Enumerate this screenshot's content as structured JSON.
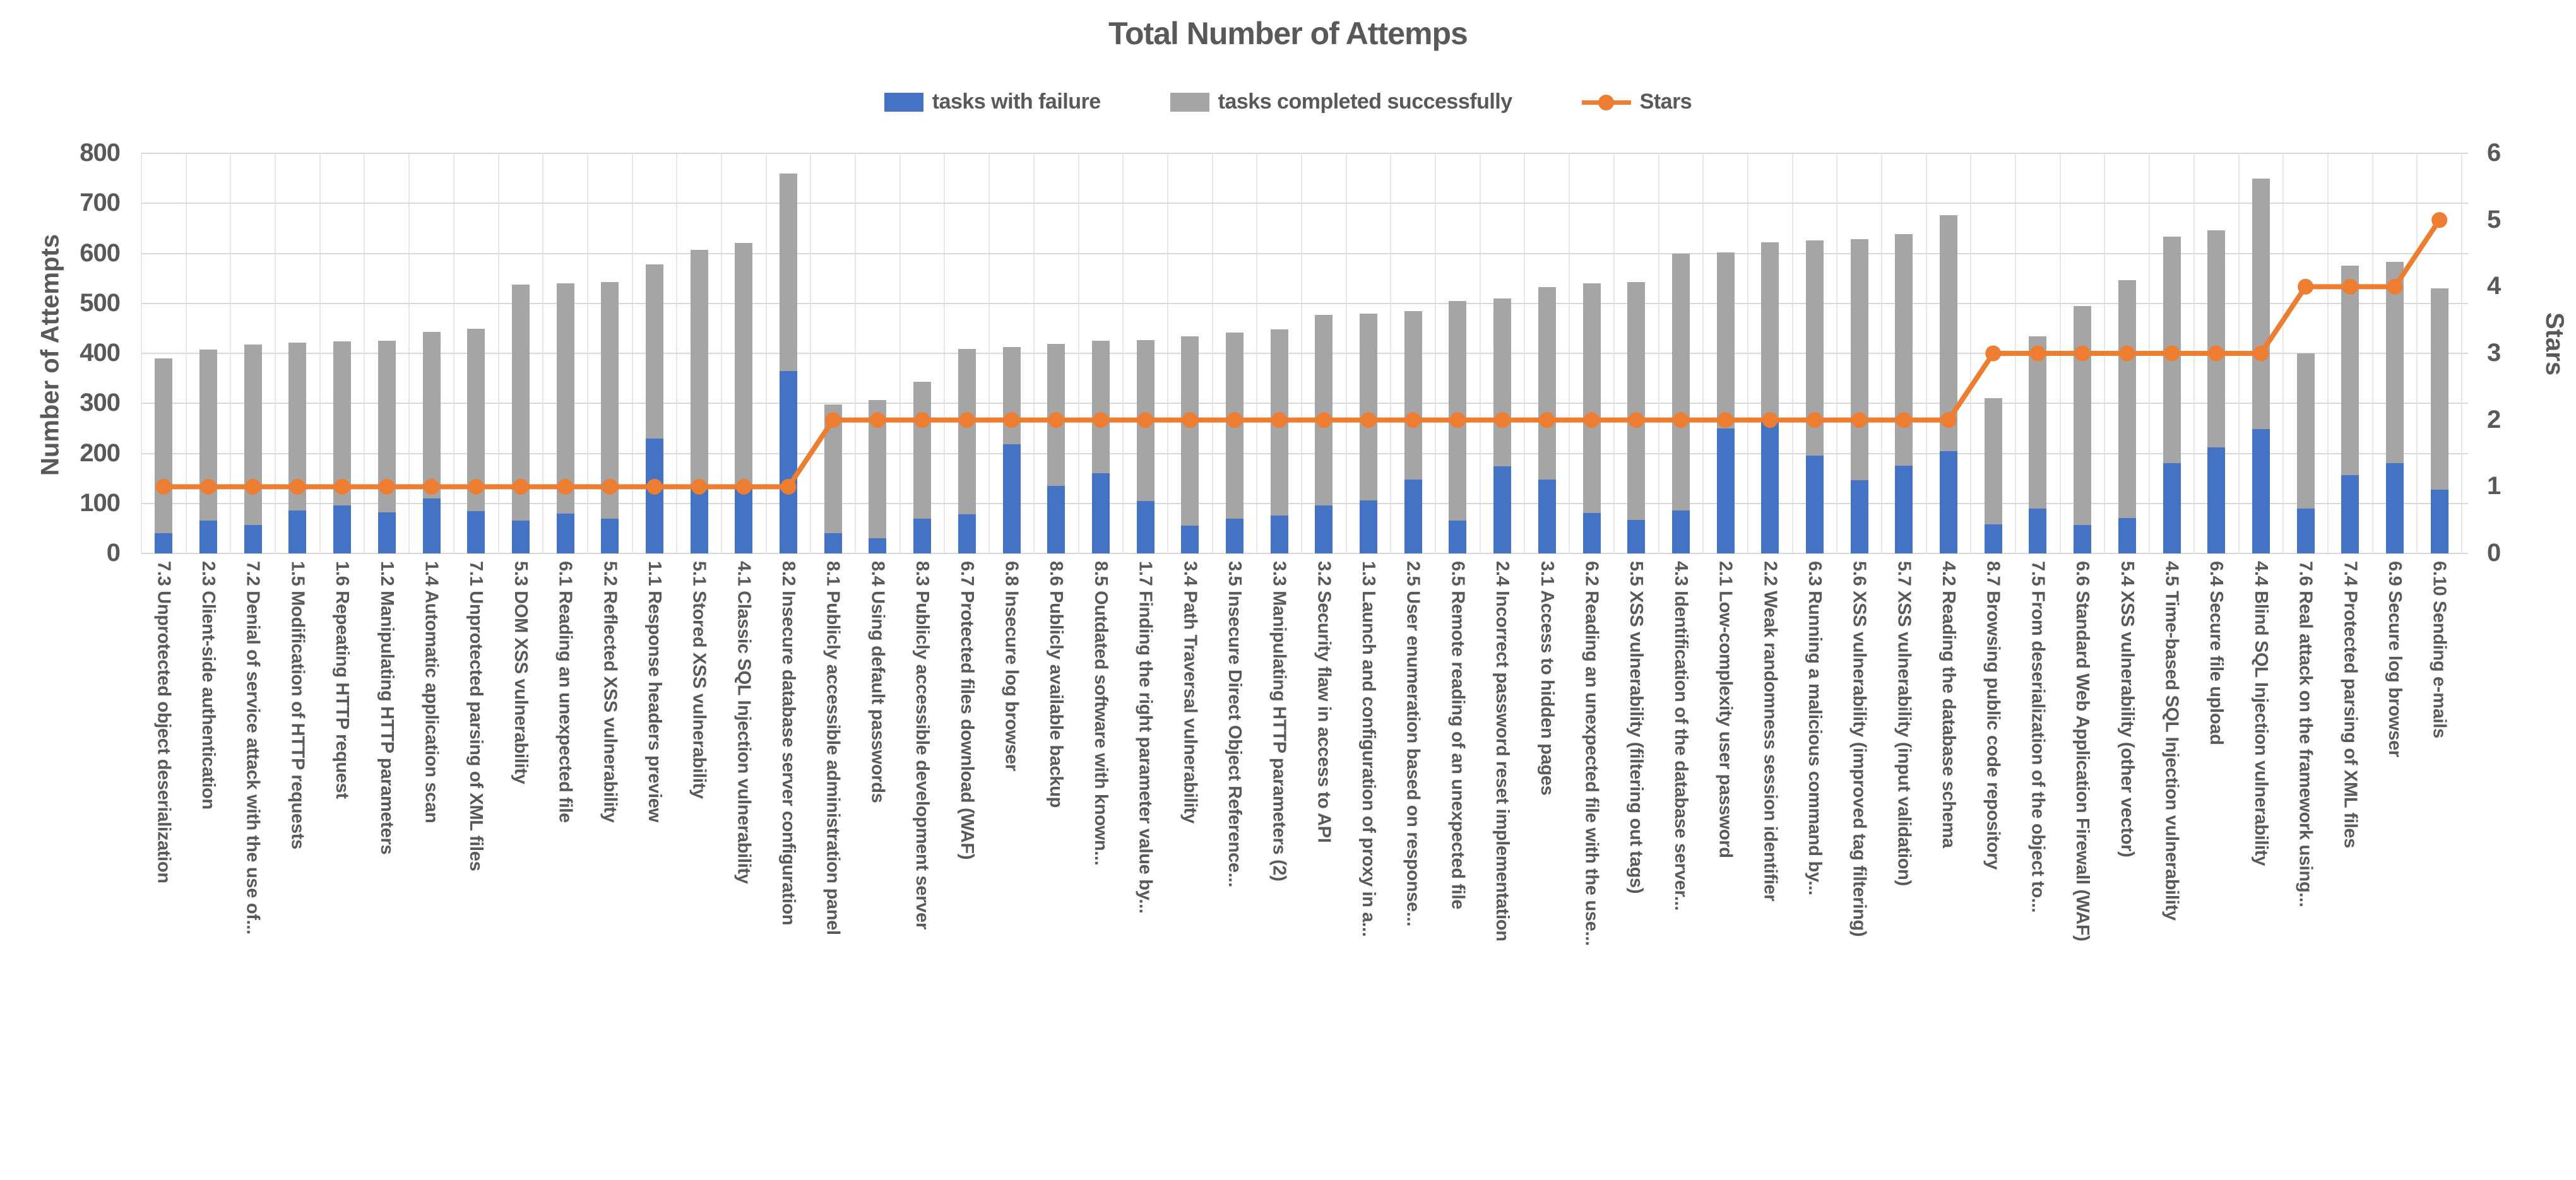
{
  "chart_data": {
    "type": "bar",
    "combo": "stacked-bars-plus-line",
    "title": "Total Number of Attemps",
    "legend": [
      "tasks with failure",
      "tasks completed successfully",
      "Stars"
    ],
    "legend_position": "top",
    "grid": "on",
    "y_axis": {
      "title": "Number of Attempts",
      "min": 0,
      "max": 800,
      "step": 100
    },
    "y2_axis": {
      "title": "Stars",
      "min": 0,
      "max": 6,
      "step": 1
    },
    "colors": {
      "failure": "#4472C4",
      "success": "#A5A5A5",
      "stars": "#ED7D31",
      "grid": "#D9D9D9",
      "text": "#595959"
    },
    "categories": [
      "7.3 Unprotected object deserialization",
      "2.3 Client-side authentication",
      "7.2 Denial of service attack with the use of...",
      "1.5 Modification of HTTP requests",
      "1.6 Repeating HTTP request",
      "1.2 Manipulating HTTP parameters",
      "1.4 Automatic application scan",
      "7.1 Unprotected parsing of XML files",
      "5.3 DOM XSS vulnerability",
      "6.1 Reading an unexpected file",
      "5.2 Reflected XSS vulnerability",
      "1.1 Response headers preview",
      "5.1 Stored XSS vulnerability",
      "4.1 Classic SQL Injection vulnerability",
      "8.2 Insecure database server configuration",
      "8.1 Publicly accessible administration panel",
      "8.4 Using default passwords",
      "8.3 Publicly accessible development server",
      "6.7 Protected files download (WAF)",
      "6.8 Insecure log browser",
      "8.6 Publicly available backup",
      "8.5 Outdated software with known...",
      "1.7 Finding the right parameter value by...",
      "3.4 Path Traversal vulnerability",
      "3.5 Insecure Direct Object Reference...",
      "3.3 Manipulating HTTP parameters (2)",
      "3.2 Security flaw in access to API",
      "1.3 Launch and configuration of proxy in a...",
      "2.5 User enumeration based on response...",
      "6.5 Remote reading of an unexpected file",
      "2.4 Incorrect password reset implementation",
      "3.1 Access to hidden pages",
      "6.2 Reading an unexpected file with the use...",
      "5.5 XSS vulnerability (filtering out tags)",
      "4.3 Identification of the database server...",
      "2.1 Low-complexity user password",
      "2.2 Weak randomness session identifier",
      "6.3 Running a malicious command by...",
      "5.6 XSS vulnerability (improved tag filtering)",
      "5.7 XSS vulnerability (input validation)",
      "4.2 Reading the database schema",
      "8.7 Browsing public code repository",
      "7.5 From deserialization of the object to...",
      "6.6 Standard Web Application Firewall (WAF)",
      "5.4 XSS vulnerability (other vector)",
      "4.5 Time-based SQL Injection vulnerability",
      "6.4 Secure file upload",
      "4.4 Blind SQL Injection vulnerability",
      "7.6 Real attack on the framework using...",
      "7.4 Protected parsing of XML files",
      "6.9 Secure log browser",
      "6.10 Sending e-mails"
    ],
    "series": [
      {
        "name": "tasks with failure",
        "type": "bar",
        "stack": 1,
        "color": "#4472C4",
        "values": [
          40,
          65,
          57,
          86,
          96,
          82,
          110,
          85,
          65,
          80,
          70,
          230,
          135,
          135,
          365,
          40,
          30,
          70,
          78,
          218,
          135,
          160,
          105,
          56,
          70,
          76,
          96,
          106,
          148,
          65,
          174,
          148,
          81,
          67,
          86,
          250,
          262,
          195,
          146,
          175,
          205,
          58,
          90,
          57,
          71,
          180,
          212,
          248,
          89,
          157,
          180,
          127
        ]
      },
      {
        "name": "tasks completed successfully",
        "type": "bar",
        "stack": 1,
        "color": "#A5A5A5",
        "values": [
          350,
          343,
          361,
          335,
          328,
          343,
          333,
          364,
          472,
          460,
          472,
          348,
          472,
          486,
          395,
          258,
          276,
          273,
          331,
          194,
          284,
          265,
          322,
          378,
          372,
          372,
          381,
          374,
          336,
          440,
          336,
          384,
          459,
          475,
          514,
          352,
          360,
          431,
          482,
          463,
          471,
          252,
          344,
          438,
          475,
          453,
          434,
          502,
          311,
          418,
          403,
          403
        ]
      },
      {
        "name": "Stars",
        "type": "line",
        "axis": "right",
        "color": "#ED7D31",
        "values": [
          1,
          1,
          1,
          1,
          1,
          1,
          1,
          1,
          1,
          1,
          1,
          1,
          1,
          1,
          1,
          2,
          2,
          2,
          2,
          2,
          2,
          2,
          2,
          2,
          2,
          2,
          2,
          2,
          2,
          2,
          2,
          2,
          2,
          2,
          2,
          2,
          2,
          2,
          2,
          2,
          2,
          3,
          3,
          3,
          3,
          3,
          3,
          3,
          4,
          4,
          4,
          5
        ]
      }
    ]
  }
}
